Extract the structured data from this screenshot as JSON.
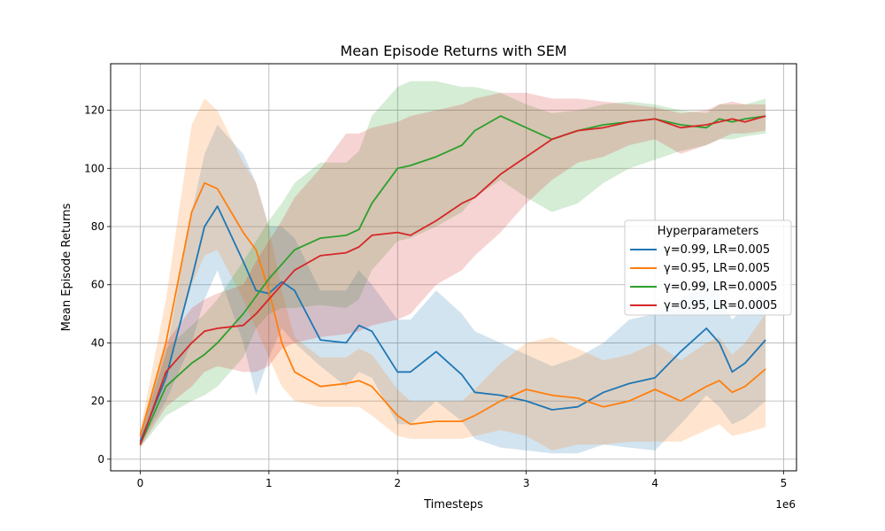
{
  "chart_data": {
    "type": "line",
    "title": "Mean Episode Returns with SEM",
    "xlabel": "Timesteps",
    "ylabel": "Mean Episode Returns",
    "x_offset_label": "1e6",
    "x_ticks": [
      0,
      1,
      2,
      3,
      4,
      5
    ],
    "y_ticks": [
      0,
      20,
      40,
      60,
      80,
      100,
      120
    ],
    "xlim": [
      -0.23,
      5.1
    ],
    "ylim": [
      -4,
      136
    ],
    "grid": true,
    "legend": {
      "title": "Hyperparameters",
      "placement": "center-right"
    },
    "x": [
      0,
      0.2,
      0.4,
      0.5,
      0.6,
      0.8,
      0.9,
      1.0,
      1.1,
      1.2,
      1.4,
      1.6,
      1.7,
      1.8,
      2.0,
      2.1,
      2.3,
      2.5,
      2.6,
      2.8,
      3.0,
      3.2,
      3.4,
      3.6,
      3.8,
      4.0,
      4.2,
      4.4,
      4.5,
      4.6,
      4.7,
      4.86
    ],
    "series": [
      {
        "name": "γ=0.99, LR=0.005",
        "color": "#1f77b4",
        "values": [
          6,
          28,
          62,
          80,
          87,
          68,
          58,
          57,
          61,
          58,
          41,
          40,
          46,
          44,
          30,
          30,
          37,
          29,
          23,
          22,
          20,
          17,
          18,
          23,
          26,
          28,
          37,
          45,
          40,
          30,
          33,
          41
        ],
        "sem_low": [
          5,
          20,
          40,
          55,
          65,
          40,
          22,
          35,
          45,
          40,
          32,
          25,
          30,
          28,
          12,
          12,
          20,
          13,
          7,
          4,
          3,
          2,
          2,
          5,
          4,
          3,
          12,
          22,
          18,
          12,
          14,
          20
        ],
        "sem_high": [
          9,
          36,
          85,
          105,
          115,
          105,
          95,
          80,
          80,
          76,
          58,
          58,
          65,
          60,
          48,
          48,
          58,
          50,
          44,
          40,
          36,
          32,
          35,
          40,
          48,
          50,
          55,
          62,
          56,
          48,
          52,
          58
        ]
      },
      {
        "name": "γ=0.95, LR=0.005",
        "color": "#ff7f0e",
        "values": [
          8,
          40,
          85,
          95,
          93,
          78,
          72,
          58,
          40,
          30,
          25,
          26,
          27,
          25,
          15,
          12,
          13,
          13,
          15,
          20,
          24,
          22,
          21,
          18,
          20,
          24,
          20,
          25,
          27,
          23,
          25,
          31
        ],
        "sem_low": [
          6,
          30,
          60,
          70,
          72,
          55,
          45,
          35,
          25,
          20,
          18,
          18,
          18,
          15,
          8,
          7,
          7,
          7,
          8,
          10,
          8,
          3,
          5,
          5,
          6,
          6,
          6,
          10,
          12,
          8,
          9,
          11
        ],
        "sem_high": [
          10,
          55,
          115,
          124,
          120,
          102,
          95,
          80,
          58,
          42,
          35,
          35,
          38,
          36,
          24,
          20,
          20,
          20,
          24,
          33,
          40,
          42,
          38,
          34,
          36,
          40,
          34,
          40,
          42,
          36,
          40,
          50
        ]
      },
      {
        "name": "γ=0.99, LR=0.0005",
        "color": "#2ca02c",
        "values": [
          5,
          25,
          33,
          36,
          40,
          50,
          56,
          62,
          67,
          72,
          76,
          77,
          79,
          88,
          100,
          101,
          104,
          108,
          113,
          118,
          114,
          110,
          113,
          115,
          116,
          117,
          115,
          114,
          117,
          116,
          117,
          118
        ],
        "sem_low": [
          4,
          15,
          20,
          22,
          25,
          35,
          45,
          50,
          52,
          52,
          53,
          52,
          55,
          65,
          75,
          76,
          80,
          85,
          90,
          96,
          90,
          85,
          88,
          95,
          100,
          103,
          106,
          108,
          110,
          110,
          111,
          112
        ],
        "sem_high": [
          7,
          38,
          46,
          50,
          55,
          68,
          75,
          82,
          88,
          95,
          102,
          102,
          106,
          118,
          128,
          130,
          130,
          128,
          128,
          126,
          122,
          119,
          120,
          122,
          123,
          122,
          120,
          119,
          122,
          122,
          122,
          124
        ]
      },
      {
        "name": "γ=0.95, LR=0.0005",
        "color": "#d62728",
        "values": [
          5,
          30,
          40,
          44,
          45,
          46,
          50,
          55,
          60,
          65,
          70,
          71,
          73,
          77,
          78,
          77,
          82,
          88,
          90,
          98,
          104,
          110,
          113,
          114,
          116,
          117,
          114,
          115,
          116,
          117,
          116,
          118
        ],
        "sem_low": [
          4,
          18,
          25,
          30,
          32,
          30,
          30,
          32,
          38,
          40,
          42,
          43,
          44,
          46,
          48,
          50,
          60,
          65,
          70,
          78,
          88,
          96,
          102,
          104,
          108,
          110,
          105,
          108,
          110,
          112,
          112,
          113
        ],
        "sem_high": [
          7,
          40,
          52,
          55,
          57,
          60,
          68,
          75,
          82,
          90,
          100,
          112,
          112,
          114,
          116,
          118,
          120,
          122,
          124,
          126,
          126,
          124,
          124,
          123,
          122,
          121,
          119,
          120,
          122,
          123,
          122,
          122
        ]
      }
    ]
  }
}
